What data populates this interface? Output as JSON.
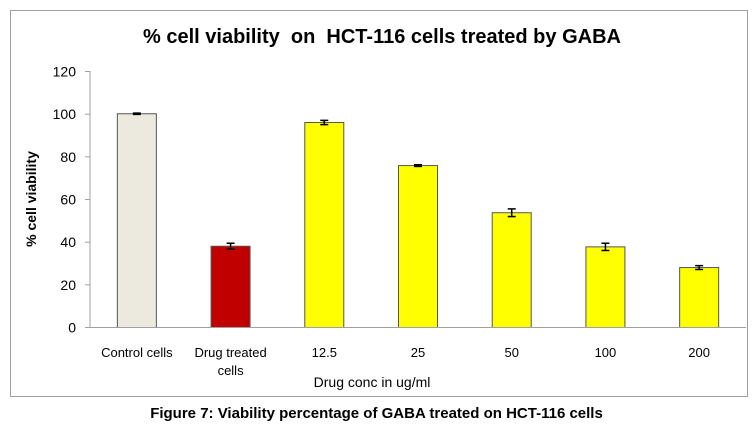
{
  "chart_data": {
    "type": "bar",
    "title": "% cell viability  on  HCT-116 cells treated by GABA",
    "xlabel": "Drug conc in ug/ml",
    "ylabel": "% cell viability",
    "ylim": [
      0,
      120
    ],
    "yticks": [
      "0",
      "20",
      "40",
      "60",
      "80",
      "100",
      "120"
    ],
    "grid": false,
    "categories": [
      "Control cells",
      "Drug treated cells",
      "12.5",
      "25",
      "50",
      "100",
      "200"
    ],
    "category_lines": [
      [
        "Control cells"
      ],
      [
        "Drug treated",
        "cells"
      ],
      [
        "12.5"
      ],
      [
        "25"
      ],
      [
        "50"
      ],
      [
        "100"
      ],
      [
        "200"
      ]
    ],
    "values": [
      100.2,
      38.1,
      96.1,
      75.9,
      53.8,
      37.8,
      28.1
    ],
    "errors": [
      0.3,
      1.4,
      1.0,
      0.4,
      1.8,
      1.7,
      0.9
    ],
    "colors": [
      "#ECE9DF",
      "#C00000",
      "#FFFF00",
      "#FFFF00",
      "#FFFF00",
      "#FFFF00",
      "#FFFF00"
    ]
  },
  "caption": "Figure 7: Viability percentage of GABA treated on HCT-116 cells"
}
